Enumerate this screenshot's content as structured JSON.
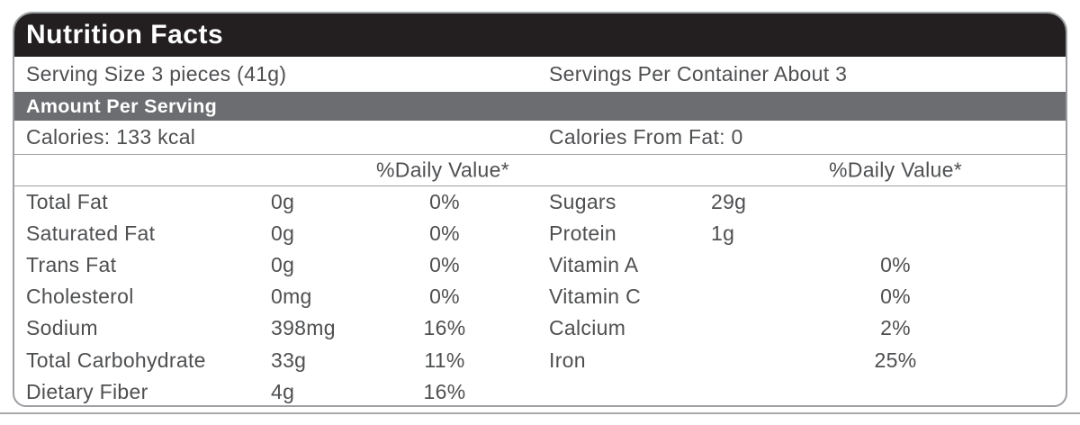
{
  "label": {
    "title": "Nutrition Facts",
    "serving_size": "Serving Size 3 pieces (41g)",
    "servings_per_container": "Servings Per Container About 3",
    "amount_per_serving": "Amount Per Serving",
    "calories": "Calories: 133 kcal",
    "calories_from_fat": "Calories From Fat: 0",
    "daily_value_header": "%Daily Value*",
    "left_rows": [
      {
        "name": "Total Fat",
        "amount": "0g",
        "dv": "0%"
      },
      {
        "name": "Saturated Fat",
        "amount": "0g",
        "dv": "0%"
      },
      {
        "name": "Trans Fat",
        "amount": "0g",
        "dv": "0%"
      },
      {
        "name": "Cholesterol",
        "amount": "0mg",
        "dv": "0%"
      },
      {
        "name": "Sodium",
        "amount": "398mg",
        "dv": "16%"
      },
      {
        "name": "Total Carbohydrate",
        "amount": "33g",
        "dv": "11%"
      },
      {
        "name": "Dietary Fiber",
        "amount": "4g",
        "dv": "16%"
      }
    ],
    "right_rows": [
      {
        "name": "Sugars",
        "amount": "29g",
        "dv": ""
      },
      {
        "name": "Protein",
        "amount": "1g",
        "dv": ""
      },
      {
        "name": "Vitamin A",
        "amount": "",
        "dv": "0%"
      },
      {
        "name": "Vitamin C",
        "amount": "",
        "dv": "0%"
      },
      {
        "name": "Calcium",
        "amount": "",
        "dv": "2%"
      },
      {
        "name": "Iron",
        "amount": "",
        "dv": "25%"
      }
    ]
  },
  "colors": {
    "bar_black": "#231f20",
    "bar_gray": "#6c6d70",
    "text": "#4e4f51",
    "line": "#9d9fa2",
    "line_light": "#a7a9ac"
  }
}
